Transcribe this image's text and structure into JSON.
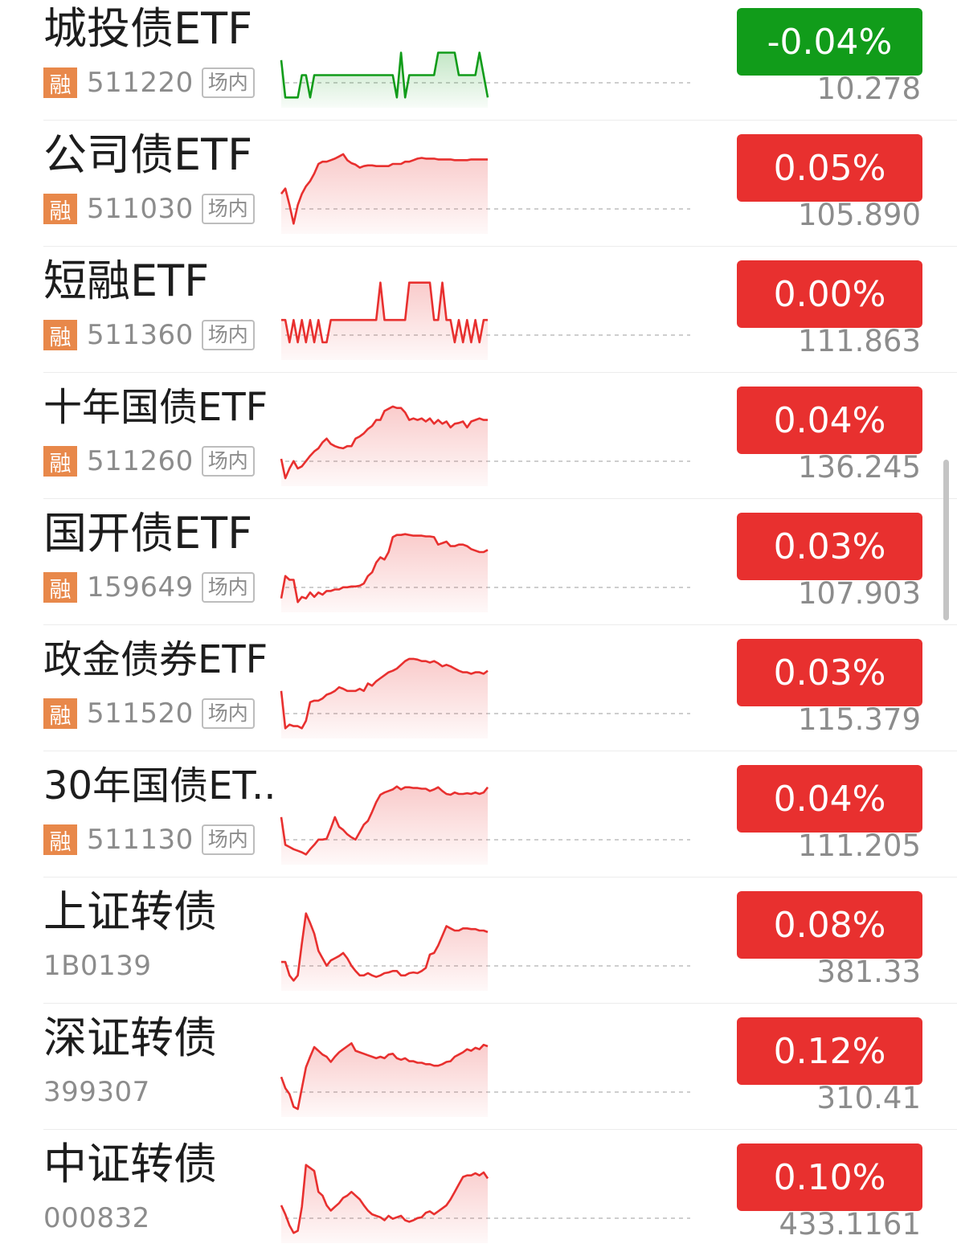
{
  "colors": {
    "up": "#e8302f",
    "down": "#119c1a",
    "tag_rong": "#e8884a"
  },
  "items": [
    {
      "name": "城投债ETF",
      "rong": "融",
      "code": "511220",
      "tag": "场内",
      "change": "-0.04%",
      "price": "10.278",
      "dir": "down",
      "spark": [
        0.55,
        0.05,
        0.05,
        0.05,
        0.05,
        0.35,
        0.35,
        0.05,
        0.35,
        0.35,
        0.35,
        0.35,
        0.35,
        0.35,
        0.35,
        0.35,
        0.35,
        0.35,
        0.35,
        0.35,
        0.35,
        0.35,
        0.35,
        0.35,
        0.35,
        0.35,
        0.35,
        0.35,
        0.05,
        0.65,
        0.05,
        0.35,
        0.35,
        0.35,
        0.35,
        0.35,
        0.35,
        0.35,
        0.65,
        0.65,
        0.65,
        0.65,
        0.65,
        0.35,
        0.35,
        0.35,
        0.35,
        0.35,
        0.65,
        0.35,
        0.05
      ]
    },
    {
      "name": "公司债ETF",
      "rong": "融",
      "code": "511030",
      "tag": "场内",
      "change": "0.05%",
      "price": "105.890",
      "dir": "up",
      "spark": [
        0.45,
        0.52,
        0.3,
        0.05,
        0.3,
        0.45,
        0.55,
        0.62,
        0.72,
        0.85,
        0.88,
        0.88,
        0.9,
        0.92,
        0.95,
        0.98,
        0.9,
        0.86,
        0.84,
        0.8,
        0.82,
        0.83,
        0.83,
        0.82,
        0.82,
        0.82,
        0.82,
        0.85,
        0.85,
        0.85,
        0.88,
        0.88,
        0.9,
        0.92,
        0.93,
        0.92,
        0.92,
        0.92,
        0.91,
        0.91,
        0.91,
        0.91,
        0.9,
        0.9,
        0.9,
        0.9,
        0.91,
        0.91,
        0.91,
        0.91,
        0.91
      ]
    },
    {
      "name": "短融ETF",
      "rong": "融",
      "code": "511360",
      "tag": "场内",
      "change": "0.00%",
      "price": "111.863",
      "dir": "up",
      "spark": [
        0.45,
        0.45,
        0.15,
        0.45,
        0.15,
        0.45,
        0.15,
        0.45,
        0.15,
        0.45,
        0.15,
        0.15,
        0.45,
        0.45,
        0.45,
        0.45,
        0.45,
        0.45,
        0.45,
        0.45,
        0.45,
        0.45,
        0.45,
        0.45,
        0.95,
        0.45,
        0.45,
        0.45,
        0.45,
        0.45,
        0.45,
        0.95,
        0.95,
        0.95,
        0.95,
        0.95,
        0.95,
        0.45,
        0.45,
        0.95,
        0.45,
        0.45,
        0.15,
        0.45,
        0.15,
        0.45,
        0.15,
        0.45,
        0.15,
        0.45,
        0.45
      ]
    },
    {
      "name": "十年国债ETF",
      "rong": "融",
      "code": "511260",
      "tag": "场内",
      "change": "0.04%",
      "price": "136.245",
      "dir": "up",
      "spark": [
        0.28,
        0.02,
        0.15,
        0.25,
        0.15,
        0.18,
        0.25,
        0.32,
        0.38,
        0.42,
        0.5,
        0.55,
        0.48,
        0.45,
        0.43,
        0.42,
        0.45,
        0.45,
        0.55,
        0.58,
        0.62,
        0.68,
        0.72,
        0.8,
        0.8,
        0.92,
        0.95,
        0.98,
        0.96,
        0.96,
        0.9,
        0.8,
        0.82,
        0.8,
        0.82,
        0.78,
        0.82,
        0.75,
        0.8,
        0.75,
        0.78,
        0.7,
        0.75,
        0.76,
        0.78,
        0.7,
        0.78,
        0.8,
        0.82,
        0.8,
        0.8
      ]
    },
    {
      "name": "国开债ETF",
      "rong": "融",
      "code": "159649",
      "tag": "场内",
      "change": "0.03%",
      "price": "107.903",
      "dir": "up",
      "spark": [
        0.1,
        0.4,
        0.35,
        0.35,
        0.05,
        0.12,
        0.1,
        0.18,
        0.12,
        0.18,
        0.15,
        0.2,
        0.2,
        0.22,
        0.22,
        0.25,
        0.25,
        0.26,
        0.26,
        0.27,
        0.3,
        0.4,
        0.45,
        0.58,
        0.65,
        0.62,
        0.72,
        0.92,
        0.95,
        0.95,
        0.96,
        0.95,
        0.94,
        0.94,
        0.94,
        0.93,
        0.93,
        0.92,
        0.82,
        0.84,
        0.86,
        0.8,
        0.8,
        0.82,
        0.82,
        0.8,
        0.76,
        0.74,
        0.72,
        0.72,
        0.75
      ]
    },
    {
      "name": "政金债券ETF",
      "rong": "融",
      "code": "511520",
      "tag": "场内",
      "change": "0.03%",
      "price": "115.379",
      "dir": "up",
      "spark": [
        0.55,
        0.05,
        0.1,
        0.08,
        0.08,
        0.05,
        0.15,
        0.4,
        0.42,
        0.42,
        0.45,
        0.5,
        0.52,
        0.55,
        0.6,
        0.58,
        0.55,
        0.55,
        0.55,
        0.58,
        0.55,
        0.65,
        0.62,
        0.68,
        0.72,
        0.76,
        0.8,
        0.82,
        0.85,
        0.9,
        0.95,
        0.98,
        0.98,
        0.97,
        0.95,
        0.95,
        0.93,
        0.95,
        0.92,
        0.88,
        0.9,
        0.88,
        0.85,
        0.82,
        0.8,
        0.8,
        0.78,
        0.8,
        0.8,
        0.78,
        0.82
      ]
    },
    {
      "name": "30年国债ET...",
      "rong": "融",
      "code": "511130",
      "tag": "场内",
      "change": "0.04%",
      "price": "111.205",
      "dir": "up",
      "spark": [
        0.55,
        0.18,
        0.15,
        0.12,
        0.1,
        0.08,
        0.05,
        0.12,
        0.18,
        0.25,
        0.25,
        0.26,
        0.4,
        0.55,
        0.42,
        0.38,
        0.32,
        0.28,
        0.25,
        0.35,
        0.45,
        0.5,
        0.62,
        0.75,
        0.85,
        0.88,
        0.9,
        0.92,
        0.96,
        0.92,
        0.95,
        0.95,
        0.94,
        0.94,
        0.93,
        0.93,
        0.9,
        0.92,
        0.95,
        0.9,
        0.86,
        0.85,
        0.88,
        0.86,
        0.86,
        0.87,
        0.86,
        0.88,
        0.86,
        0.88,
        0.95
      ]
    },
    {
      "name": "上证转债",
      "rong": "",
      "code": "1B0139",
      "tag": "",
      "change": "0.08%",
      "price": "381.33",
      "dir": "up",
      "spark": [
        0.3,
        0.3,
        0.12,
        0.05,
        0.12,
        0.55,
        0.95,
        0.82,
        0.68,
        0.45,
        0.35,
        0.25,
        0.32,
        0.35,
        0.38,
        0.42,
        0.35,
        0.25,
        0.18,
        0.12,
        0.12,
        0.15,
        0.12,
        0.1,
        0.12,
        0.15,
        0.16,
        0.18,
        0.18,
        0.12,
        0.12,
        0.15,
        0.16,
        0.15,
        0.18,
        0.22,
        0.4,
        0.42,
        0.52,
        0.65,
        0.78,
        0.75,
        0.72,
        0.72,
        0.75,
        0.75,
        0.74,
        0.74,
        0.72,
        0.72,
        0.7
      ]
    },
    {
      "name": "深证转债",
      "rong": "",
      "code": "399307",
      "tag": "",
      "change": "0.12%",
      "price": "310.41",
      "dir": "up",
      "spark": [
        0.45,
        0.3,
        0.22,
        0.05,
        0.02,
        0.3,
        0.58,
        0.72,
        0.85,
        0.8,
        0.75,
        0.72,
        0.65,
        0.72,
        0.78,
        0.82,
        0.86,
        0.9,
        0.8,
        0.78,
        0.76,
        0.74,
        0.72,
        0.7,
        0.72,
        0.7,
        0.75,
        0.76,
        0.7,
        0.68,
        0.7,
        0.66,
        0.66,
        0.64,
        0.64,
        0.62,
        0.62,
        0.6,
        0.6,
        0.62,
        0.65,
        0.66,
        0.72,
        0.75,
        0.78,
        0.82,
        0.8,
        0.84,
        0.82,
        0.88,
        0.86
      ]
    },
    {
      "name": "中证转债",
      "rong": "",
      "code": "000832",
      "tag": "",
      "change": "0.10%",
      "price": "433.1161",
      "dir": "up",
      "spark": [
        0.42,
        0.3,
        0.15,
        0.05,
        0.08,
        0.4,
        0.96,
        0.92,
        0.88,
        0.6,
        0.55,
        0.42,
        0.35,
        0.4,
        0.45,
        0.52,
        0.55,
        0.6,
        0.55,
        0.5,
        0.42,
        0.35,
        0.3,
        0.28,
        0.26,
        0.22,
        0.28,
        0.24,
        0.26,
        0.28,
        0.22,
        0.2,
        0.22,
        0.25,
        0.26,
        0.32,
        0.34,
        0.3,
        0.34,
        0.38,
        0.42,
        0.5,
        0.6,
        0.7,
        0.8,
        0.82,
        0.82,
        0.85,
        0.82,
        0.86,
        0.78
      ]
    }
  ]
}
